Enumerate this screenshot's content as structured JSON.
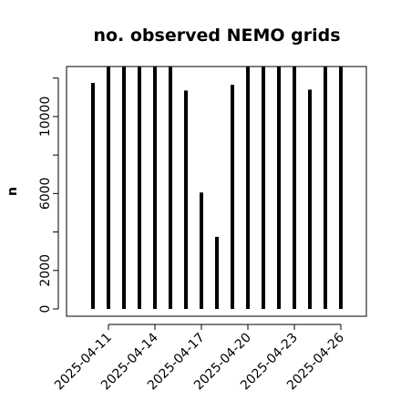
{
  "chart_data": {
    "type": "bar",
    "title": "no. observed NEMO grids",
    "xlabel": "",
    "ylabel": "n",
    "ylim": [
      0,
      12600
    ],
    "yticks": [
      0,
      2000,
      6000,
      10000
    ],
    "xtick_labels": [
      "2025-04-11",
      "2025-04-14",
      "2025-04-17",
      "2025-04-20",
      "2025-04-23",
      "2025-04-26"
    ],
    "categories": [
      "2025-04-10",
      "2025-04-11",
      "2025-04-12",
      "2025-04-13",
      "2025-04-14",
      "2025-04-15",
      "2025-04-16",
      "2025-04-17",
      "2025-04-18",
      "2025-04-19",
      "2025-04-20",
      "2025-04-21",
      "2025-04-22",
      "2025-04-23",
      "2025-04-24",
      "2025-04-25",
      "2025-04-26"
    ],
    "values": [
      11750,
      12600,
      12600,
      12600,
      12600,
      12600,
      11350,
      6050,
      3750,
      11650,
      12600,
      12600,
      12600,
      12600,
      11400,
      12600,
      12600
    ],
    "bar_color": "#000000",
    "grid": false
  }
}
